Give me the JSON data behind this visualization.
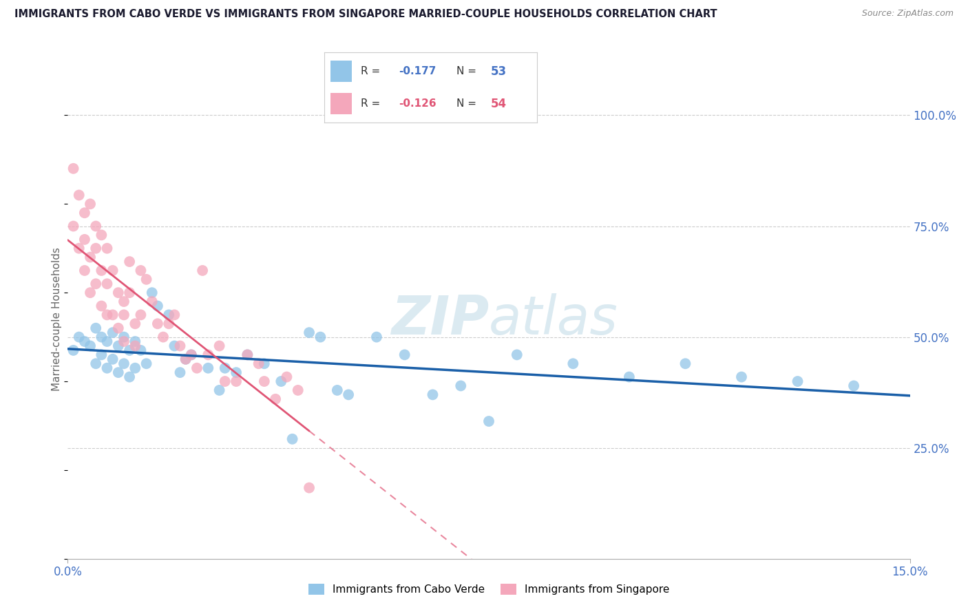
{
  "title": "IMMIGRANTS FROM CABO VERDE VS IMMIGRANTS FROM SINGAPORE MARRIED-COUPLE HOUSEHOLDS CORRELATION CHART",
  "source": "Source: ZipAtlas.com",
  "ylabel": "Married-couple Households",
  "y_ticks": [
    "25.0%",
    "50.0%",
    "75.0%",
    "100.0%"
  ],
  "y_tick_vals": [
    0.25,
    0.5,
    0.75,
    1.0
  ],
  "x_range": [
    0.0,
    0.15
  ],
  "y_range": [
    0.0,
    1.08
  ],
  "color_blue": "#92c5e8",
  "color_pink": "#f4a7bb",
  "trendline_blue": "#1a5fa8",
  "trendline_pink": "#e05575",
  "legend_label1": "Immigrants from Cabo Verde",
  "legend_label2": "Immigrants from Singapore",
  "cabo_verde_x": [
    0.001,
    0.002,
    0.003,
    0.004,
    0.005,
    0.005,
    0.006,
    0.006,
    0.007,
    0.007,
    0.008,
    0.008,
    0.009,
    0.009,
    0.01,
    0.01,
    0.011,
    0.011,
    0.012,
    0.012,
    0.013,
    0.014,
    0.015,
    0.016,
    0.018,
    0.019,
    0.02,
    0.021,
    0.022,
    0.025,
    0.027,
    0.028,
    0.03,
    0.032,
    0.035,
    0.038,
    0.04,
    0.043,
    0.045,
    0.048,
    0.05,
    0.055,
    0.06,
    0.065,
    0.07,
    0.075,
    0.08,
    0.09,
    0.1,
    0.11,
    0.12,
    0.13,
    0.14
  ],
  "cabo_verde_y": [
    0.47,
    0.5,
    0.49,
    0.48,
    0.52,
    0.44,
    0.5,
    0.46,
    0.49,
    0.43,
    0.51,
    0.45,
    0.48,
    0.42,
    0.5,
    0.44,
    0.47,
    0.41,
    0.49,
    0.43,
    0.47,
    0.44,
    0.6,
    0.57,
    0.55,
    0.48,
    0.42,
    0.45,
    0.46,
    0.43,
    0.38,
    0.43,
    0.42,
    0.46,
    0.44,
    0.4,
    0.27,
    0.51,
    0.5,
    0.38,
    0.37,
    0.5,
    0.46,
    0.37,
    0.39,
    0.31,
    0.46,
    0.44,
    0.41,
    0.44,
    0.41,
    0.4,
    0.39
  ],
  "singapore_x": [
    0.001,
    0.001,
    0.002,
    0.002,
    0.003,
    0.003,
    0.003,
    0.004,
    0.004,
    0.004,
    0.005,
    0.005,
    0.005,
    0.006,
    0.006,
    0.006,
    0.007,
    0.007,
    0.007,
    0.008,
    0.008,
    0.009,
    0.009,
    0.01,
    0.01,
    0.01,
    0.011,
    0.011,
    0.012,
    0.012,
    0.013,
    0.013,
    0.014,
    0.015,
    0.016,
    0.017,
    0.018,
    0.019,
    0.02,
    0.021,
    0.022,
    0.023,
    0.024,
    0.025,
    0.027,
    0.028,
    0.03,
    0.032,
    0.034,
    0.035,
    0.037,
    0.039,
    0.041,
    0.043
  ],
  "singapore_y": [
    0.88,
    0.75,
    0.82,
    0.7,
    0.78,
    0.72,
    0.65,
    0.8,
    0.68,
    0.6,
    0.75,
    0.7,
    0.62,
    0.73,
    0.65,
    0.57,
    0.7,
    0.62,
    0.55,
    0.65,
    0.55,
    0.6,
    0.52,
    0.55,
    0.49,
    0.58,
    0.67,
    0.6,
    0.53,
    0.48,
    0.65,
    0.55,
    0.63,
    0.58,
    0.53,
    0.5,
    0.53,
    0.55,
    0.48,
    0.45,
    0.46,
    0.43,
    0.65,
    0.46,
    0.48,
    0.4,
    0.4,
    0.46,
    0.44,
    0.4,
    0.36,
    0.41,
    0.38,
    0.16
  ]
}
